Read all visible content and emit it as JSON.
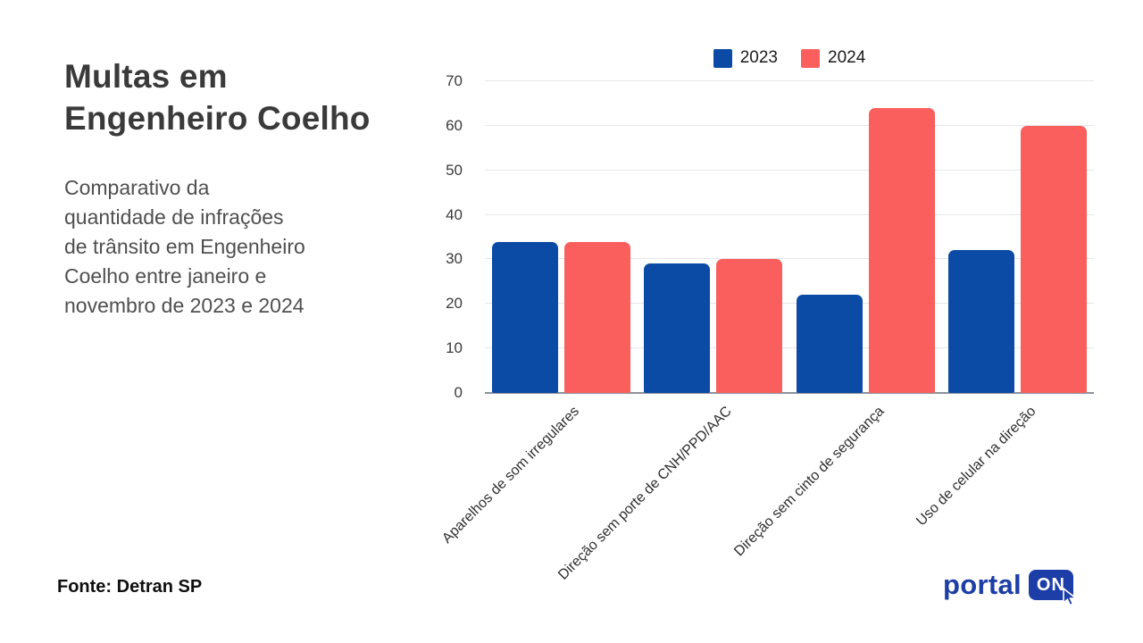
{
  "page": {
    "title": "Multas em\nEngenheiro Coelho",
    "subtitle": "Comparativo da\nquantidade de infrações\nde trânsito em Engenheiro\nCoelho entre janeiro e\nnovembro de 2023 e 2024",
    "source": "Fonte: Detran SP"
  },
  "logo": {
    "text": "portal",
    "badge": "ON"
  },
  "colors": {
    "blue_2023": "#0B4AA5",
    "red_2024": "#FA5F5D",
    "grid": "#E6E6E9",
    "axis_baseline": "#8C929B",
    "logo_blue": "#1C3EA6"
  },
  "chart_data": {
    "type": "bar",
    "title": "Multas em Engenheiro Coelho",
    "categories": [
      "Aparelhos de som irregulares",
      "Direção sem porte de CNH/PPD/AAC",
      "Direção sem cinto de segurança",
      "Uso de celular na direção"
    ],
    "series": [
      {
        "name": "2023",
        "color": "#0B4AA5",
        "values": [
          34,
          29,
          22,
          32
        ]
      },
      {
        "name": "2024",
        "color": "#FA5F5D",
        "values": [
          34,
          30,
          64,
          60
        ]
      }
    ],
    "xlabel": "",
    "ylabel": "",
    "ylim": [
      0,
      70
    ],
    "yticks": [
      0,
      10,
      20,
      30,
      40,
      50,
      60,
      70
    ],
    "grid": "horizontal",
    "legend_position": "top-center",
    "x_tick_rotation": 45
  }
}
